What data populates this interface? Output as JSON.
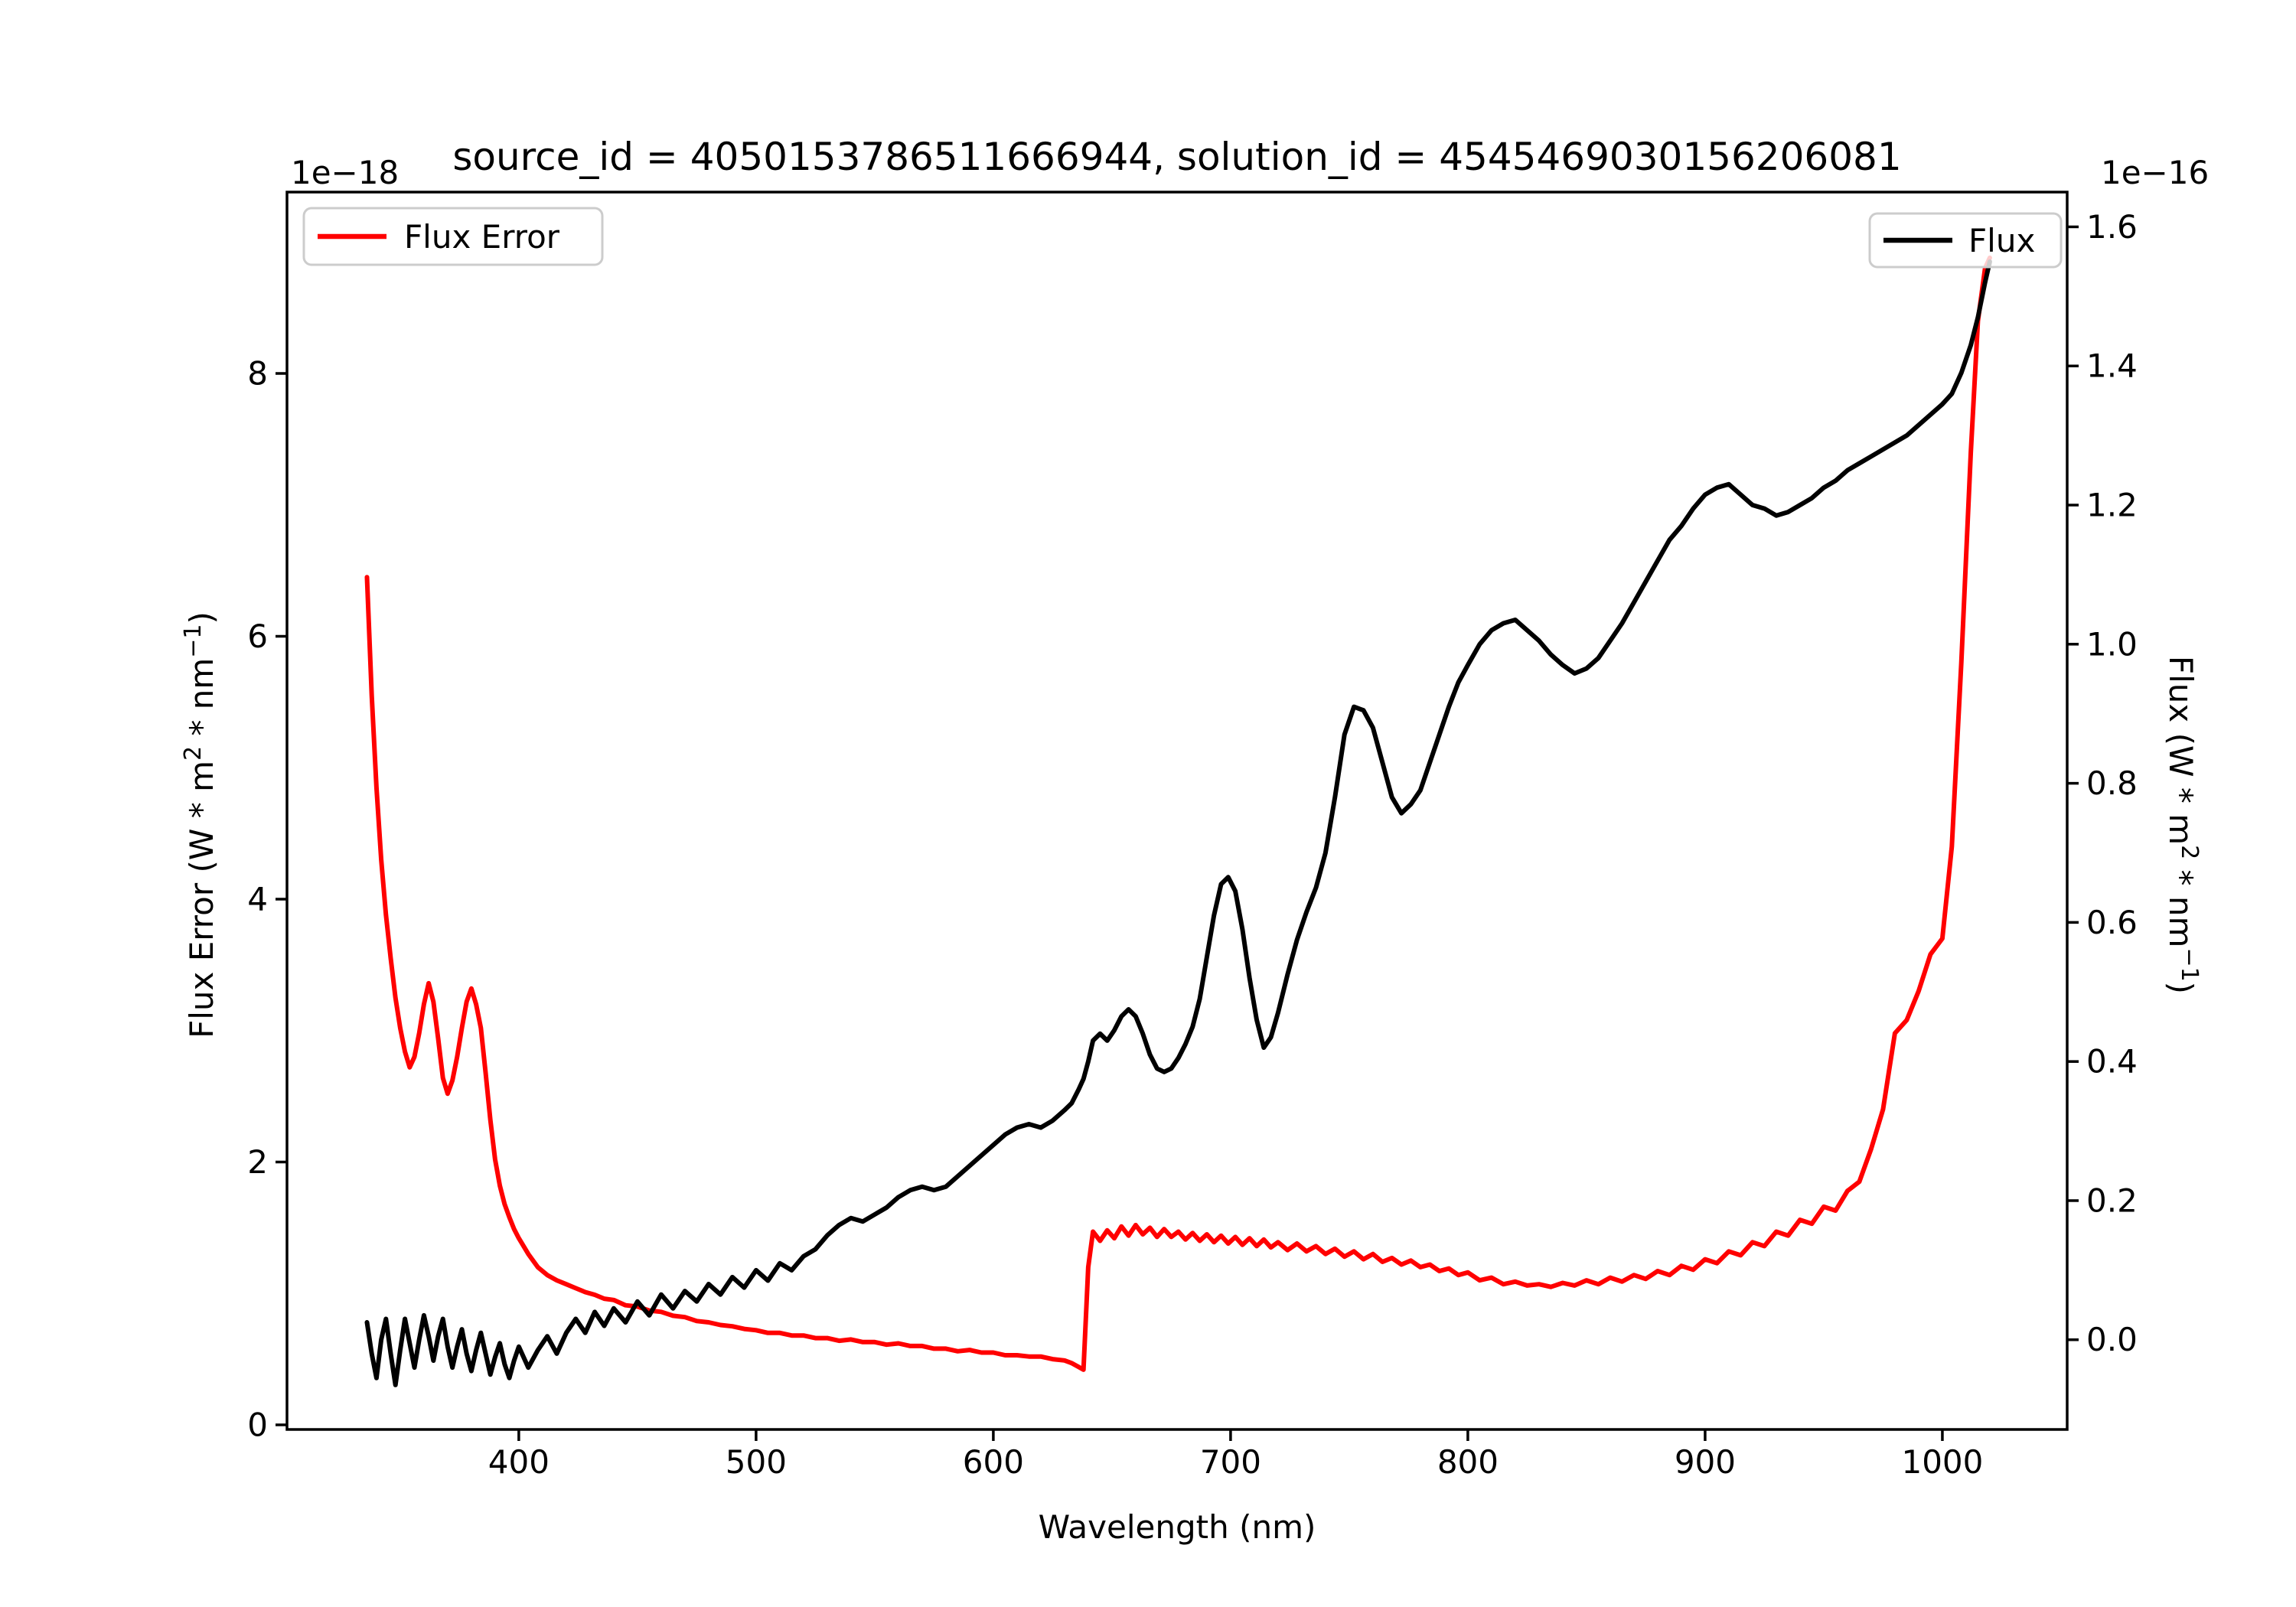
{
  "title": "source_id = 4050153786511666944, solution_id = 4545469030156206081",
  "xlabel": "Wavelength (nm)",
  "offset_text_left": "1e−18",
  "offset_text_right": "1e−16",
  "ylabel_left": {
    "p1": "Flux Error (W * m",
    "s1": "2",
    "p2": " * nm",
    "s2": "−1",
    "p3": ")"
  },
  "ylabel_right": {
    "p1": "Flux (W * m",
    "s1": "2",
    "p2": " * nm",
    "s2": "−1",
    "p3": ")"
  },
  "legend_left": {
    "label": "Flux Error"
  },
  "legend_right": {
    "label": "Flux"
  },
  "colors": {
    "flux_error_line": "#ff0000",
    "flux_line": "#000000",
    "left_tick_label": "#ff0000",
    "right_tick_label": "#000000",
    "legend_border": "#cccccc"
  },
  "chart_data": {
    "type": "line",
    "title": "source_id = 4050153786511666944, solution_id = 4545469030156206081",
    "xlabel": "Wavelength (nm)",
    "ylabel_left": "Flux Error (W * m^2 * nm^-1)",
    "ylabel_right": "Flux (W * m^2 * nm^-1)",
    "left_offset": "1e-18",
    "right_offset": "1e-16",
    "grid": false,
    "legend_left_pos": "upper left",
    "legend_right_pos": "upper right",
    "xlim": [
      302.3,
      1052.6
    ],
    "x_ticks": [
      400,
      500,
      600,
      700,
      800,
      900,
      1000
    ],
    "left_axis": {
      "lim": [
        -0.035,
        9.38
      ],
      "tick_values": [
        0,
        2,
        4,
        6,
        8
      ],
      "tick_labels": [
        "0",
        "2",
        "4",
        "6",
        "8"
      ]
    },
    "right_axis": {
      "lim": [
        -0.129,
        1.65
      ],
      "tick_values": [
        0.0,
        0.2,
        0.4,
        0.6,
        0.8,
        1.0,
        1.2,
        1.4,
        1.6
      ],
      "tick_labels": [
        "0.0",
        "0.2",
        "0.4",
        "0.6",
        "0.8",
        "1.0",
        "1.2",
        "1.4",
        "1.6"
      ]
    },
    "x": [
      336,
      338,
      340,
      342,
      344,
      346,
      348,
      350,
      352,
      354,
      356,
      358,
      360,
      362,
      364,
      366,
      368,
      370,
      372,
      374,
      376,
      378,
      380,
      382,
      384,
      386,
      388,
      390,
      392,
      394,
      396,
      398,
      400,
      404,
      408,
      412,
      416,
      420,
      424,
      428,
      432,
      436,
      440,
      445,
      450,
      455,
      460,
      465,
      470,
      475,
      480,
      485,
      490,
      495,
      500,
      505,
      510,
      515,
      520,
      525,
      530,
      535,
      540,
      545,
      550,
      555,
      560,
      565,
      570,
      575,
      580,
      585,
      590,
      595,
      600,
      605,
      610,
      615,
      620,
      625,
      630,
      633,
      636,
      638,
      640,
      642,
      645,
      648,
      651,
      654,
      657,
      660,
      663,
      666,
      669,
      672,
      675,
      678,
      681,
      684,
      687,
      690,
      693,
      696,
      699,
      702,
      705,
      708,
      711,
      714,
      717,
      720,
      724,
      728,
      732,
      736,
      740,
      744,
      748,
      752,
      756,
      760,
      764,
      768,
      772,
      776,
      780,
      784,
      788,
      792,
      796,
      800,
      805,
      810,
      815,
      820,
      825,
      830,
      835,
      840,
      845,
      850,
      855,
      860,
      865,
      870,
      875,
      880,
      885,
      890,
      895,
      900,
      905,
      910,
      915,
      920,
      925,
      930,
      935,
      940,
      945,
      950,
      955,
      960,
      965,
      970,
      975,
      980,
      985,
      990,
      995,
      1000,
      1004,
      1008,
      1012,
      1015,
      1018,
      1020
    ],
    "series": [
      {
        "name": "Flux Error",
        "axis": "left",
        "color": "#ff0000",
        "unit_scale": "1e-18",
        "values": [
          6.45,
          5.55,
          4.85,
          4.3,
          3.88,
          3.55,
          3.25,
          3.02,
          2.84,
          2.72,
          2.8,
          2.98,
          3.2,
          3.36,
          3.22,
          2.94,
          2.64,
          2.52,
          2.62,
          2.8,
          3.02,
          3.22,
          3.32,
          3.2,
          3.02,
          2.68,
          2.32,
          2.02,
          1.82,
          1.68,
          1.58,
          1.49,
          1.42,
          1.3,
          1.2,
          1.14,
          1.1,
          1.07,
          1.04,
          1.01,
          0.99,
          0.96,
          0.95,
          0.91,
          0.9,
          0.87,
          0.86,
          0.83,
          0.82,
          0.79,
          0.78,
          0.76,
          0.75,
          0.73,
          0.72,
          0.7,
          0.7,
          0.68,
          0.68,
          0.66,
          0.66,
          0.64,
          0.65,
          0.63,
          0.63,
          0.61,
          0.62,
          0.6,
          0.6,
          0.58,
          0.58,
          0.56,
          0.57,
          0.55,
          0.55,
          0.53,
          0.53,
          0.52,
          0.52,
          0.5,
          0.49,
          0.47,
          0.44,
          0.42,
          1.2,
          1.47,
          1.4,
          1.48,
          1.42,
          1.51,
          1.44,
          1.52,
          1.45,
          1.5,
          1.43,
          1.49,
          1.43,
          1.47,
          1.41,
          1.46,
          1.4,
          1.45,
          1.39,
          1.44,
          1.38,
          1.43,
          1.37,
          1.42,
          1.36,
          1.41,
          1.35,
          1.39,
          1.33,
          1.38,
          1.32,
          1.36,
          1.3,
          1.34,
          1.28,
          1.32,
          1.26,
          1.3,
          1.24,
          1.27,
          1.22,
          1.25,
          1.2,
          1.22,
          1.17,
          1.19,
          1.14,
          1.16,
          1.1,
          1.12,
          1.07,
          1.09,
          1.06,
          1.07,
          1.05,
          1.08,
          1.06,
          1.1,
          1.07,
          1.12,
          1.09,
          1.14,
          1.11,
          1.17,
          1.14,
          1.21,
          1.18,
          1.26,
          1.23,
          1.32,
          1.29,
          1.39,
          1.36,
          1.47,
          1.44,
          1.56,
          1.53,
          1.66,
          1.63,
          1.78,
          1.85,
          2.1,
          2.4,
          2.98,
          3.08,
          3.3,
          3.58,
          3.7,
          4.4,
          5.8,
          7.4,
          8.4,
          8.8,
          8.88
        ]
      },
      {
        "name": "Flux",
        "axis": "right",
        "color": "#000000",
        "unit_scale": "1e-16",
        "values": [
          0.025,
          -0.02,
          -0.055,
          0.0,
          0.03,
          -0.02,
          -0.065,
          -0.015,
          0.03,
          -0.005,
          -0.04,
          0.0,
          0.035,
          0.005,
          -0.03,
          0.005,
          0.03,
          -0.01,
          -0.04,
          -0.01,
          0.015,
          -0.02,
          -0.045,
          -0.015,
          0.01,
          -0.02,
          -0.05,
          -0.025,
          -0.005,
          -0.035,
          -0.055,
          -0.03,
          -0.01,
          -0.04,
          -0.015,
          0.005,
          -0.02,
          0.01,
          0.03,
          0.01,
          0.04,
          0.02,
          0.045,
          0.025,
          0.055,
          0.035,
          0.065,
          0.045,
          0.07,
          0.055,
          0.08,
          0.065,
          0.09,
          0.075,
          0.1,
          0.085,
          0.11,
          0.1,
          0.12,
          0.13,
          0.15,
          0.165,
          0.175,
          0.17,
          0.18,
          0.19,
          0.205,
          0.215,
          0.22,
          0.215,
          0.22,
          0.235,
          0.25,
          0.265,
          0.28,
          0.295,
          0.305,
          0.31,
          0.305,
          0.315,
          0.33,
          0.34,
          0.36,
          0.375,
          0.4,
          0.43,
          0.44,
          0.43,
          0.445,
          0.465,
          0.475,
          0.465,
          0.44,
          0.41,
          0.39,
          0.385,
          0.39,
          0.405,
          0.425,
          0.45,
          0.49,
          0.55,
          0.61,
          0.655,
          0.665,
          0.645,
          0.59,
          0.52,
          0.46,
          0.42,
          0.435,
          0.47,
          0.525,
          0.575,
          0.615,
          0.65,
          0.7,
          0.78,
          0.87,
          0.91,
          0.905,
          0.88,
          0.83,
          0.78,
          0.757,
          0.77,
          0.79,
          0.83,
          0.87,
          0.91,
          0.945,
          0.97,
          1.0,
          1.02,
          1.03,
          1.035,
          1.02,
          1.005,
          0.985,
          0.97,
          0.958,
          0.965,
          0.98,
          1.005,
          1.03,
          1.06,
          1.09,
          1.12,
          1.15,
          1.17,
          1.195,
          1.215,
          1.225,
          1.23,
          1.215,
          1.2,
          1.195,
          1.185,
          1.19,
          1.2,
          1.21,
          1.225,
          1.235,
          1.25,
          1.26,
          1.27,
          1.28,
          1.29,
          1.3,
          1.315,
          1.33,
          1.345,
          1.36,
          1.39,
          1.43,
          1.47,
          1.52,
          1.55
        ]
      }
    ]
  }
}
